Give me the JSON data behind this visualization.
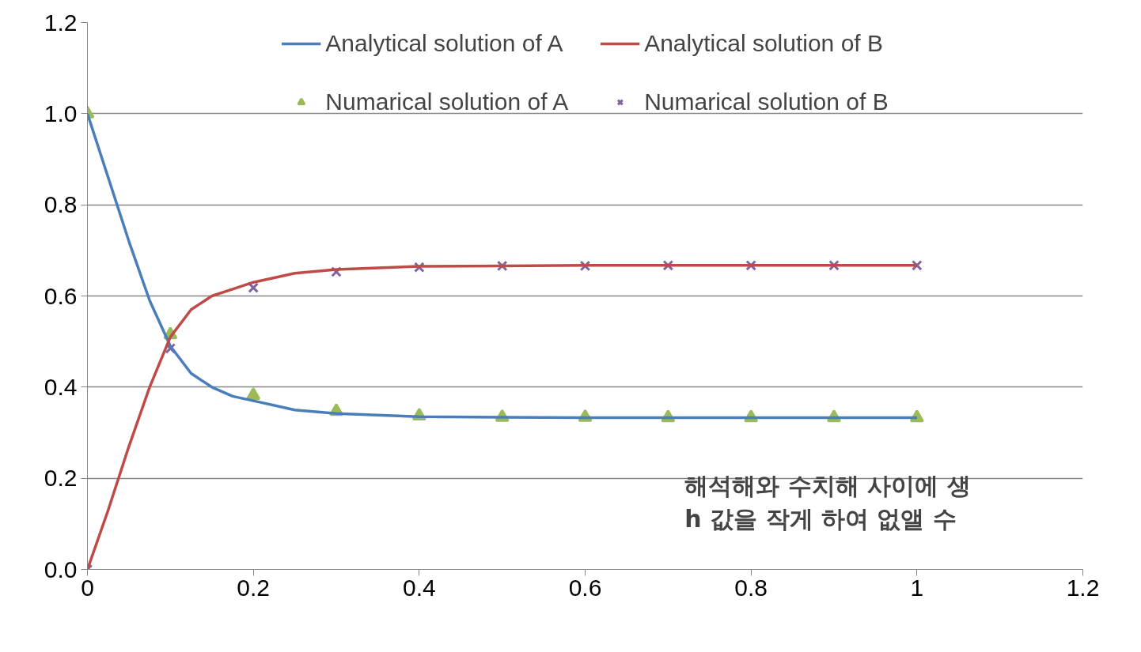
{
  "chart_data": {
    "type": "line",
    "x": [
      0,
      0.1,
      0.2,
      0.3,
      0.4,
      0.5,
      0.6,
      0.7,
      0.8,
      0.9,
      1
    ],
    "series": [
      {
        "name": "Analytical solution of A",
        "marker": "none",
        "color": "#4a7ebb",
        "x": [
          0,
          0.025,
          0.05,
          0.075,
          0.1,
          0.125,
          0.15,
          0.175,
          0.2,
          0.25,
          0.3,
          0.4,
          0.5,
          0.6,
          0.7,
          0.8,
          0.9,
          1
        ],
        "values": [
          1.0,
          0.86,
          0.72,
          0.59,
          0.49,
          0.43,
          0.4,
          0.38,
          0.37,
          0.35,
          0.342,
          0.335,
          0.334,
          0.333,
          0.333,
          0.333,
          0.333,
          0.333
        ]
      },
      {
        "name": "Analytical solution of B",
        "marker": "none",
        "color": "#be4b48",
        "x": [
          0,
          0.025,
          0.05,
          0.075,
          0.1,
          0.125,
          0.15,
          0.175,
          0.2,
          0.25,
          0.3,
          0.4,
          0.5,
          0.6,
          0.7,
          0.8,
          0.9,
          1
        ],
        "values": [
          0.0,
          0.13,
          0.27,
          0.4,
          0.51,
          0.57,
          0.6,
          0.615,
          0.63,
          0.65,
          0.658,
          0.665,
          0.666,
          0.667,
          0.667,
          0.667,
          0.667,
          0.667
        ]
      },
      {
        "name": "Numarical solution of A",
        "type": "scatter",
        "marker": "triangle",
        "color": "#9bbb59",
        "values": [
          1.0,
          0.515,
          0.382,
          0.347,
          0.337,
          0.334,
          0.334,
          0.333,
          0.333,
          0.333,
          0.333
        ]
      },
      {
        "name": "Numarical solution of B",
        "type": "scatter",
        "marker": "cross",
        "color": "#8064a2",
        "values": [
          0.0,
          0.485,
          0.618,
          0.653,
          0.663,
          0.666,
          0.666,
          0.667,
          0.667,
          0.667,
          0.667
        ]
      }
    ],
    "xlim": [
      0,
      1.2
    ],
    "xticks": [
      0,
      0.2,
      0.4,
      0.6,
      0.8,
      1,
      1.2
    ],
    "ylim": [
      0,
      1.2
    ],
    "yticks": [
      {
        "value": 0,
        "label": "0.0"
      },
      {
        "value": 0.2,
        "label": "0.2"
      },
      {
        "value": 0.4,
        "label": "0.4"
      },
      {
        "value": 0.6,
        "label": "0.6"
      },
      {
        "value": 0.8,
        "label": "0.8"
      },
      {
        "value": 1.0,
        "label": "1.0"
      },
      {
        "value": 1.2,
        "label": "1.2"
      }
    ],
    "grid": "y",
    "legend": "top",
    "annotations": [
      "해석해와 수치해 사이에 생\nh 값을 작게 하여 없앨 수"
    ]
  }
}
